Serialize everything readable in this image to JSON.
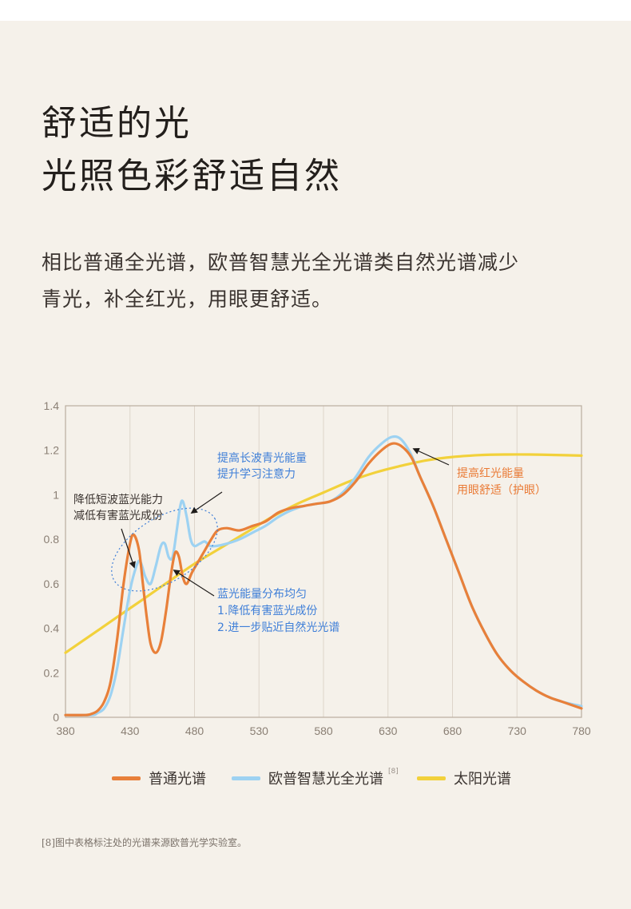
{
  "headline": {
    "line1": "舒适的光",
    "line2": "光照色彩舒适自然"
  },
  "intro": {
    "line1": "相比普通全光谱，欧普智慧光全光谱类自然光谱减少",
    "line2": "青光，补全红光，用眼更舒适。"
  },
  "colors": {
    "ordinary": "#e8803a",
    "opple": "#9dd2f2",
    "sun": "#f2d13b",
    "annotation_blue": "#3f7fd8",
    "annotation_orange": "#ea7a35",
    "annotation_dark": "#3b3430",
    "axis": "#b9ad9f",
    "grid": "#ddd5ca"
  },
  "chart_data": {
    "type": "line",
    "xlim": [
      380,
      780
    ],
    "ylim": [
      0,
      1.4
    ],
    "x_ticks": [
      "380",
      "430",
      "480",
      "530",
      "580",
      "630",
      "680",
      "730",
      "780"
    ],
    "y_ticks": [
      "0",
      "0.2",
      "0.4",
      "0.6",
      "0.8",
      "1",
      "1.2",
      "1.4"
    ],
    "grid": "vertical",
    "series": [
      {
        "name": "普通光谱",
        "color": "#e8803a",
        "points": [
          [
            380,
            0.01
          ],
          [
            395,
            0.01
          ],
          [
            400,
            0.015
          ],
          [
            405,
            0.03
          ],
          [
            410,
            0.07
          ],
          [
            415,
            0.16
          ],
          [
            420,
            0.35
          ],
          [
            425,
            0.6
          ],
          [
            430,
            0.78
          ],
          [
            433,
            0.82
          ],
          [
            437,
            0.75
          ],
          [
            440,
            0.6
          ],
          [
            443,
            0.45
          ],
          [
            446,
            0.33
          ],
          [
            450,
            0.29
          ],
          [
            454,
            0.34
          ],
          [
            458,
            0.48
          ],
          [
            462,
            0.65
          ],
          [
            465,
            0.74
          ],
          [
            468,
            0.72
          ],
          [
            471,
            0.63
          ],
          [
            474,
            0.6
          ],
          [
            478,
            0.65
          ],
          [
            483,
            0.7
          ],
          [
            488,
            0.75
          ],
          [
            493,
            0.8
          ],
          [
            498,
            0.84
          ],
          [
            505,
            0.85
          ],
          [
            515,
            0.84
          ],
          [
            525,
            0.86
          ],
          [
            535,
            0.88
          ],
          [
            545,
            0.92
          ],
          [
            555,
            0.94
          ],
          [
            565,
            0.95
          ],
          [
            575,
            0.96
          ],
          [
            585,
            0.97
          ],
          [
            595,
            1.0
          ],
          [
            605,
            1.06
          ],
          [
            615,
            1.14
          ],
          [
            625,
            1.2
          ],
          [
            633,
            1.23
          ],
          [
            640,
            1.22
          ],
          [
            648,
            1.17
          ],
          [
            655,
            1.08
          ],
          [
            665,
            0.95
          ],
          [
            675,
            0.8
          ],
          [
            685,
            0.65
          ],
          [
            695,
            0.5
          ],
          [
            705,
            0.38
          ],
          [
            715,
            0.28
          ],
          [
            725,
            0.21
          ],
          [
            735,
            0.16
          ],
          [
            745,
            0.12
          ],
          [
            755,
            0.09
          ],
          [
            765,
            0.07
          ],
          [
            780,
            0.04
          ]
        ]
      },
      {
        "name": "欧普智慧光全光谱",
        "color": "#9dd2f2",
        "points": [
          [
            380,
            0.01
          ],
          [
            400,
            0.01
          ],
          [
            405,
            0.02
          ],
          [
            410,
            0.04
          ],
          [
            415,
            0.1
          ],
          [
            420,
            0.22
          ],
          [
            425,
            0.4
          ],
          [
            430,
            0.57
          ],
          [
            435,
            0.68
          ],
          [
            438,
            0.7
          ],
          [
            442,
            0.63
          ],
          [
            446,
            0.6
          ],
          [
            450,
            0.68
          ],
          [
            454,
            0.77
          ],
          [
            457,
            0.78
          ],
          [
            460,
            0.72
          ],
          [
            463,
            0.72
          ],
          [
            466,
            0.83
          ],
          [
            469,
            0.95
          ],
          [
            471,
            0.97
          ],
          [
            474,
            0.9
          ],
          [
            477,
            0.8
          ],
          [
            480,
            0.77
          ],
          [
            484,
            0.78
          ],
          [
            488,
            0.79
          ],
          [
            492,
            0.77
          ],
          [
            497,
            0.77
          ],
          [
            505,
            0.78
          ],
          [
            515,
            0.8
          ],
          [
            525,
            0.83
          ],
          [
            535,
            0.86
          ],
          [
            545,
            0.9
          ],
          [
            555,
            0.93
          ],
          [
            565,
            0.95
          ],
          [
            575,
            0.96
          ],
          [
            585,
            0.97
          ],
          [
            595,
            1.01
          ],
          [
            605,
            1.08
          ],
          [
            615,
            1.17
          ],
          [
            625,
            1.23
          ],
          [
            633,
            1.26
          ],
          [
            640,
            1.25
          ],
          [
            648,
            1.18
          ],
          [
            655,
            1.08
          ],
          [
            665,
            0.95
          ],
          [
            675,
            0.8
          ],
          [
            685,
            0.65
          ],
          [
            695,
            0.5
          ],
          [
            705,
            0.38
          ],
          [
            715,
            0.28
          ],
          [
            725,
            0.21
          ],
          [
            735,
            0.16
          ],
          [
            745,
            0.12
          ],
          [
            755,
            0.09
          ],
          [
            765,
            0.07
          ],
          [
            780,
            0.05
          ]
        ]
      },
      {
        "name": "太阳光谱",
        "color": "#f2d13b",
        "points": [
          [
            380,
            0.29
          ],
          [
            400,
            0.37
          ],
          [
            420,
            0.45
          ],
          [
            440,
            0.53
          ],
          [
            460,
            0.61
          ],
          [
            480,
            0.69
          ],
          [
            500,
            0.76
          ],
          [
            520,
            0.83
          ],
          [
            540,
            0.9
          ],
          [
            560,
            0.96
          ],
          [
            580,
            1.01
          ],
          [
            600,
            1.06
          ],
          [
            620,
            1.1
          ],
          [
            640,
            1.13
          ],
          [
            660,
            1.155
          ],
          [
            680,
            1.17
          ],
          [
            700,
            1.178
          ],
          [
            720,
            1.181
          ],
          [
            740,
            1.181
          ],
          [
            760,
            1.179
          ],
          [
            780,
            1.176
          ]
        ]
      }
    ],
    "annotations": [
      {
        "text": "提高长波青光能量",
        "color": "blue"
      },
      {
        "text": "提升学习注意力",
        "color": "blue"
      },
      {
        "text": "降低短波蓝光能力",
        "color": "dark"
      },
      {
        "text": "减低有害蓝光成份",
        "color": "dark"
      },
      {
        "text": "蓝光能量分布均匀",
        "color": "blue"
      },
      {
        "text": "1.降低有害蓝光成份",
        "color": "blue"
      },
      {
        "text": "2.进一步贴近自然光光谱",
        "color": "blue"
      },
      {
        "text": "提高红光能量",
        "color": "orange"
      },
      {
        "text": "用眼舒适（护眼）",
        "color": "orange"
      }
    ]
  },
  "legend": {
    "items": [
      {
        "label": "普通光谱"
      },
      {
        "label": "欧普智慧光全光谱",
        "ref": "[8]"
      },
      {
        "label": "太阳光谱"
      }
    ]
  },
  "footnote": "[8]图中表格标注处的光谱来源欧普光学实验室。"
}
